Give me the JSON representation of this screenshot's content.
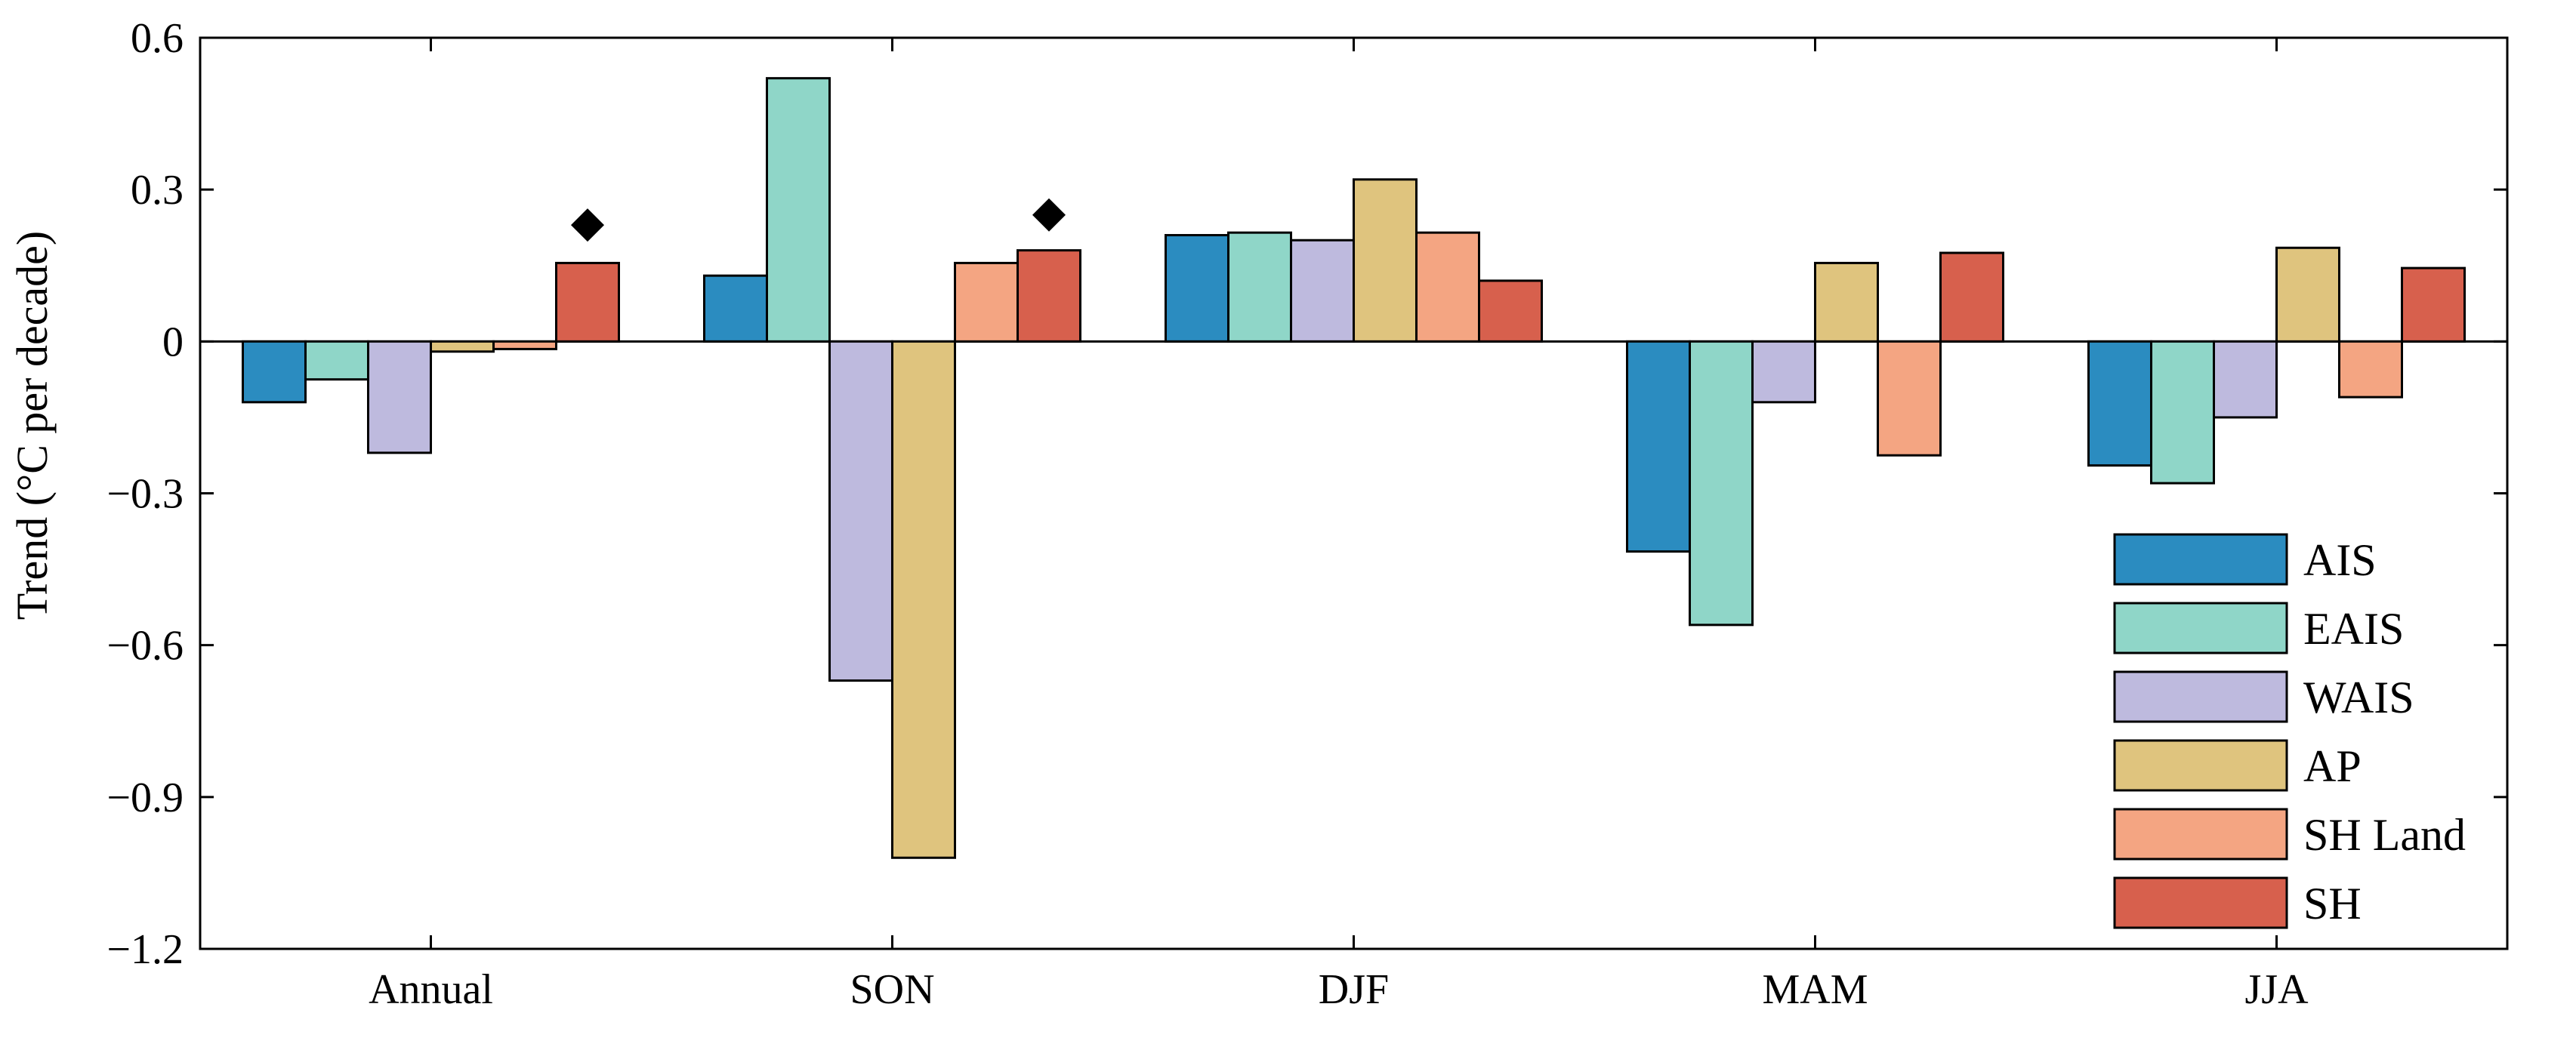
{
  "chart_data": {
    "type": "bar",
    "title": "",
    "xlabel": "",
    "ylabel": "Trend (°C per decade)",
    "ylim": [
      -1.2,
      0.6
    ],
    "yticks": [
      0.6,
      0.3,
      0,
      -0.3,
      -0.6,
      -0.9,
      -1.2
    ],
    "ytick_labels": [
      "0.6",
      "0.3",
      "0",
      "−0.3",
      "−0.6",
      "−0.9",
      "−1.2"
    ],
    "categories": [
      "Annual",
      "SON",
      "DJF",
      "MAM",
      "JJA"
    ],
    "series": [
      {
        "name": "AIS",
        "color": "#2B8CC0",
        "values": [
          -0.12,
          0.13,
          0.21,
          -0.415,
          -0.245
        ]
      },
      {
        "name": "EAIS",
        "color": "#8FD6C8",
        "values": [
          -0.075,
          0.52,
          0.215,
          -0.56,
          -0.28
        ]
      },
      {
        "name": "WAIS",
        "color": "#BEBADE",
        "values": [
          -0.22,
          -0.67,
          0.2,
          -0.12,
          -0.15
        ]
      },
      {
        "name": "AP",
        "color": "#DFC47E",
        "values": [
          -0.02,
          -1.02,
          0.32,
          0.155,
          0.185
        ]
      },
      {
        "name": "SH Land",
        "color": "#F4A582",
        "values": [
          -0.015,
          0.155,
          0.215,
          -0.225,
          -0.11
        ]
      },
      {
        "name": "SH",
        "color": "#D7604D",
        "values": [
          0.155,
          0.18,
          0.12,
          0.175,
          0.145
        ]
      }
    ],
    "markers": [
      {
        "category": "Annual",
        "series": "SH",
        "y": 0.23,
        "symbol": "diamond"
      },
      {
        "category": "SON",
        "series": "SH",
        "y": 0.25,
        "symbol": "diamond"
      }
    ],
    "legend_position": "bottom-right",
    "grid": false
  }
}
